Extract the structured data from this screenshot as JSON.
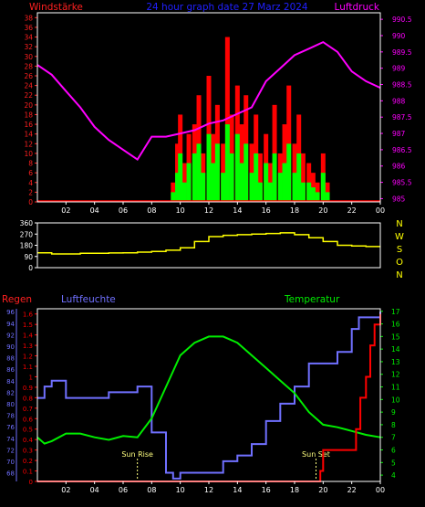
{
  "colors": {
    "background": "#000000",
    "frame": "#ffffff",
    "wind_label": "#ff2020",
    "pressure": "#ff00ff",
    "gust": "#ff0000",
    "wind": "#00ff00",
    "direction": "#ffff00",
    "rain": "#ff0000",
    "humidity": "#7070ff",
    "temperature": "#00ee00",
    "sun": "#ffff80",
    "title": "#2020ff"
  },
  "chart_data": [
    {
      "type": "bar",
      "panel": "wind",
      "title": "24 hour graph date  27 Marz 2024",
      "left_axis_label": "Windstärke",
      "right_axis_label": "Luftdruck",
      "x_tick_labels": [
        "02",
        "04",
        "06",
        "08",
        "10",
        "12",
        "14",
        "16",
        "18",
        "20",
        "22",
        "00"
      ],
      "y_left_ticks": [
        "0",
        "2",
        "4",
        "6",
        "8",
        "10",
        "12",
        "14",
        "16",
        "18",
        "20",
        "22",
        "24",
        "26",
        "28",
        "30",
        "32",
        "34",
        "36",
        "38"
      ],
      "y_right_ticks": [
        "985",
        "985.5",
        "986",
        "986.5",
        "987",
        "987.5",
        "988",
        "988.5",
        "989",
        "989.5",
        "990",
        "990.5"
      ],
      "ylim_left": [
        0,
        39
      ],
      "ylim_right": [
        984.9,
        990.7
      ],
      "xlim_hours": [
        0,
        24
      ],
      "series": [
        {
          "role": "gust",
          "x": [
            9.5,
            9.8,
            10.0,
            10.3,
            10.6,
            11.0,
            11.3,
            11.6,
            12.0,
            12.3,
            12.6,
            13.0,
            13.3,
            13.6,
            14.0,
            14.3,
            14.6,
            15.0,
            15.3,
            15.6,
            16.0,
            16.3,
            16.6,
            17.0,
            17.3,
            17.6,
            18.0,
            18.3,
            18.6,
            19.0,
            19.3,
            19.6,
            20.0,
            20.3
          ],
          "values": [
            4,
            12,
            18,
            8,
            14,
            16,
            22,
            10,
            26,
            14,
            20,
            12,
            34,
            18,
            24,
            16,
            22,
            12,
            18,
            10,
            14,
            8,
            20,
            10,
            16,
            24,
            12,
            18,
            10,
            8,
            6,
            4,
            10,
            4
          ]
        },
        {
          "role": "wind",
          "x": [
            9.5,
            9.8,
            10.0,
            10.3,
            10.6,
            11.0,
            11.3,
            11.6,
            12.0,
            12.3,
            12.6,
            13.0,
            13.3,
            13.6,
            14.0,
            14.3,
            14.6,
            15.0,
            15.3,
            15.6,
            16.0,
            16.3,
            16.6,
            17.0,
            17.3,
            17.6,
            18.0,
            18.3,
            18.6,
            19.0,
            19.3,
            19.6,
            20.0,
            20.3
          ],
          "values": [
            2,
            6,
            10,
            4,
            8,
            10,
            12,
            6,
            14,
            8,
            12,
            6,
            16,
            10,
            14,
            8,
            12,
            6,
            10,
            4,
            8,
            4,
            10,
            6,
            8,
            12,
            6,
            10,
            4,
            4,
            3,
            2,
            6,
            2
          ]
        },
        {
          "role": "pressure",
          "x": [
            0,
            1,
            2,
            3,
            4,
            5,
            6,
            7,
            8,
            9,
            10,
            11,
            12,
            13,
            14,
            15,
            16,
            17,
            18,
            19,
            20,
            21,
            22,
            23,
            24
          ],
          "values": [
            989.1,
            988.8,
            988.3,
            987.8,
            987.2,
            986.8,
            986.5,
            986.2,
            986.9,
            986.9,
            987.0,
            987.1,
            987.3,
            987.4,
            987.6,
            987.8,
            988.6,
            989.0,
            989.4,
            989.6,
            989.8,
            989.5,
            988.9,
            988.6,
            988.4
          ]
        }
      ]
    },
    {
      "type": "line",
      "panel": "direction",
      "right_axis_label": "N W S O N",
      "y_ticks": [
        "0",
        "90",
        "180",
        "270",
        "360"
      ],
      "ylim": [
        0,
        360
      ],
      "xlim_hours": [
        0,
        24
      ],
      "series": [
        {
          "role": "direction",
          "x": [
            0,
            1,
            2,
            3,
            4,
            5,
            6,
            7,
            8,
            9,
            10,
            11,
            12,
            13,
            14,
            15,
            16,
            17,
            18,
            19,
            20,
            21,
            22,
            23,
            24
          ],
          "values": [
            120,
            110,
            110,
            115,
            115,
            118,
            120,
            125,
            130,
            140,
            160,
            210,
            250,
            260,
            265,
            270,
            275,
            280,
            265,
            240,
            210,
            180,
            175,
            170,
            170
          ]
        }
      ]
    },
    {
      "type": "line",
      "panel": "climate",
      "labels": {
        "rain": "Regen",
        "humidity": "Luftfeuchte",
        "temperature": "Temperatur"
      },
      "annotations": [
        "Sun Rise",
        "Sun Set"
      ],
      "annotation_hours": [
        7.0,
        19.5
      ],
      "x_tick_labels": [
        "02",
        "04",
        "06",
        "08",
        "10",
        "12",
        "14",
        "16",
        "18",
        "20",
        "22",
        "00"
      ],
      "y_humidity_ticks": [
        "68",
        "70",
        "72",
        "74",
        "76",
        "78",
        "80",
        "82",
        "84",
        "86",
        "88",
        "90",
        "92",
        "94",
        "96"
      ],
      "y_rain_ticks": [
        "0",
        "0.1",
        "0.2",
        "0.3",
        "0.4",
        "0.5",
        "0.6",
        "0.7",
        "0.8",
        "0.9",
        "1",
        "1.1",
        "1.2",
        "1.3",
        "1.4",
        "1.5",
        "1.6"
      ],
      "y_temp_ticks": [
        "4",
        "5",
        "6",
        "7",
        "8",
        "9",
        "10",
        "11",
        "12",
        "13",
        "14",
        "15",
        "16",
        "17"
      ],
      "ylim_humidity": [
        66.5,
        96.5
      ],
      "ylim_rain": [
        0,
        1.65
      ],
      "ylim_temp": [
        3.5,
        17.2
      ],
      "xlim_hours": [
        0,
        24
      ],
      "series": [
        {
          "role": "humidity",
          "x": [
            0,
            0.5,
            1,
            2,
            3,
            4,
            5,
            6,
            7,
            8,
            9,
            9.5,
            10,
            11,
            12,
            13,
            14,
            15,
            16,
            17,
            18,
            19,
            20,
            21,
            22,
            22.5,
            23,
            24
          ],
          "values": [
            81,
            83,
            84,
            81,
            81,
            81,
            82,
            82,
            83,
            75,
            68,
            67,
            68,
            68,
            68,
            70,
            71,
            73,
            77,
            80,
            83,
            87,
            87,
            89,
            93,
            95,
            95,
            96
          ]
        },
        {
          "role": "rain",
          "x": [
            0,
            19.3,
            19.8,
            20.0,
            21.0,
            22.0,
            22.3,
            22.6,
            23.0,
            23.3,
            23.6,
            24.0
          ],
          "values": [
            0,
            0,
            0.1,
            0.3,
            0.3,
            0.3,
            0.5,
            0.8,
            1.0,
            1.3,
            1.5,
            1.6
          ]
        },
        {
          "role": "temperature",
          "x": [
            0,
            0.5,
            1,
            2,
            3,
            4,
            5,
            6,
            7,
            8,
            9,
            10,
            11,
            12,
            13,
            14,
            15,
            16,
            17,
            18,
            19,
            20,
            21,
            22,
            23,
            24
          ],
          "values": [
            7.0,
            6.5,
            6.7,
            7.3,
            7.3,
            7.0,
            6.8,
            7.1,
            7.0,
            8.5,
            11.0,
            13.5,
            14.5,
            15.0,
            15.0,
            14.5,
            13.5,
            12.5,
            11.5,
            10.5,
            9.0,
            8.0,
            7.8,
            7.5,
            7.2,
            7.0
          ]
        }
      ]
    }
  ]
}
